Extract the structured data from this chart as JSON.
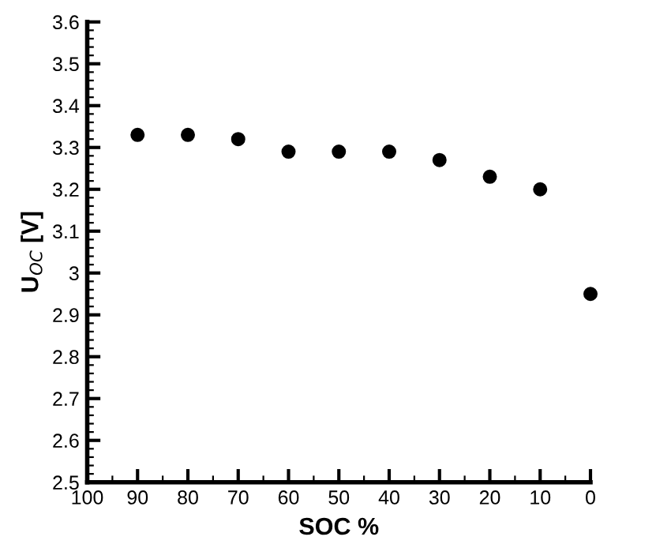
{
  "chart_data": {
    "type": "scatter",
    "xlabel": "SOC %",
    "ylabel": "U$_{OC}$ [V]",
    "x": [
      90,
      80,
      70,
      60,
      50,
      40,
      30,
      20,
      10,
      0
    ],
    "values": [
      3.33,
      3.33,
      3.32,
      3.29,
      3.29,
      3.29,
      3.27,
      3.23,
      3.2,
      2.95
    ],
    "color": "#000000",
    "marker": "circle",
    "xlim": [
      100,
      0
    ],
    "xticks": [
      100,
      90,
      80,
      70,
      60,
      50,
      40,
      30,
      20,
      10,
      0
    ],
    "ylim": [
      2.5,
      3.6
    ],
    "yticks": [
      2.5,
      2.6,
      2.7,
      2.8,
      2.9,
      3,
      3.1,
      3.2,
      3.3,
      3.4,
      3.5,
      3.6
    ],
    "grid": false,
    "legend": false
  }
}
